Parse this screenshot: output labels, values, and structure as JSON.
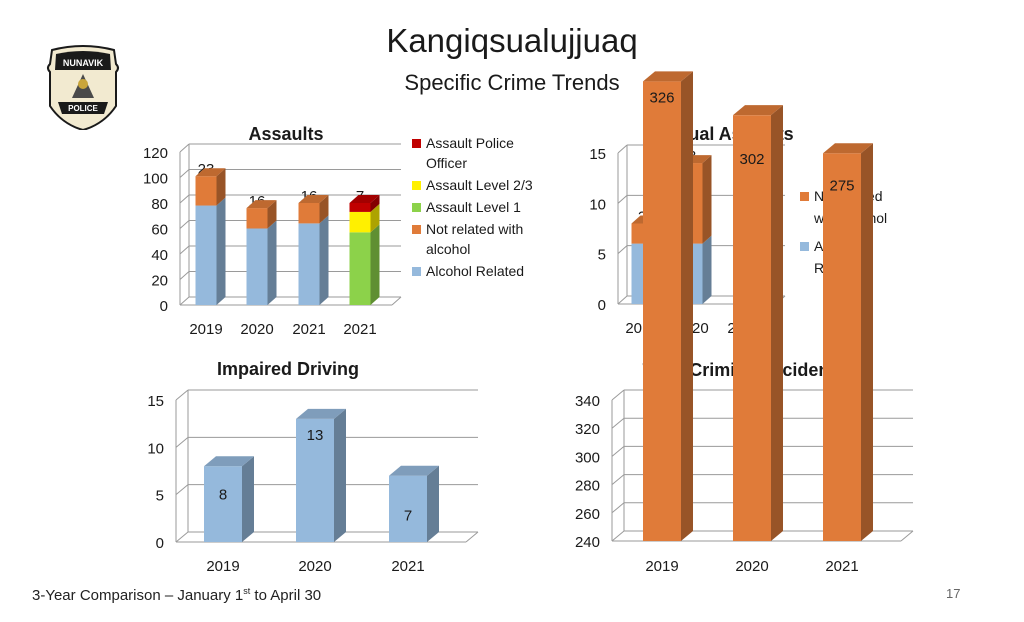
{
  "slide": {
    "title": "Kangiqsualujjuaq",
    "subtitle": "Specific Crime Trends",
    "logo_text_top": "NUNAVIK",
    "logo_text_bottom": "POLICE",
    "footer_pre": "3-Year Comparison – January 1",
    "footer_sup": "st",
    "footer_post": " to April 30",
    "page_number": "17"
  },
  "colors": {
    "alcohol_related": "#95B9DC",
    "not_related": "#E07B39",
    "assault_level_1": "#8CD24A",
    "assault_level_23": "#FFF000",
    "assault_police": "#C00000"
  },
  "chart_data": [
    {
      "id": "assaults",
      "type": "bar",
      "stacked": true,
      "title": "Assaults",
      "categories": [
        "2019",
        "2020",
        "2021",
        "2021"
      ],
      "ylim": [
        0,
        120
      ],
      "yticks": [
        0,
        20,
        40,
        60,
        80,
        100,
        120
      ],
      "grid": true,
      "legend_position": "right",
      "series": [
        {
          "name": "Alcohol Related",
          "color": "#95B9DC",
          "values": [
            78,
            60,
            64,
            0
          ]
        },
        {
          "name": "Assault Level 1",
          "color": "#8CD24A",
          "values": [
            0,
            0,
            0,
            57
          ]
        },
        {
          "name": "Not related with alcohol",
          "color": "#E07B39",
          "values": [
            23,
            16,
            16,
            0
          ]
        },
        {
          "name": "Assault Level 2/3",
          "color": "#FFF000",
          "values": [
            0,
            0,
            0,
            16
          ]
        },
        {
          "name": "Assault Police Officer",
          "color": "#C00000",
          "values": [
            0,
            0,
            0,
            7
          ]
        }
      ],
      "legend": [
        {
          "name": "Assault Police Officer",
          "color": "#C00000"
        },
        {
          "name": "Assault Level 2/3",
          "color": "#FFF000"
        },
        {
          "name": "Assault Level 1",
          "color": "#8CD24A"
        },
        {
          "name": "Not related with alcohol",
          "color": "#E07B39"
        },
        {
          "name": "Alcohol Related",
          "color": "#95B9DC"
        }
      ]
    },
    {
      "id": "sexual-assaults",
      "type": "bar",
      "stacked": true,
      "title": "Sexual Assaults",
      "categories": [
        "2019",
        "2020",
        "2021"
      ],
      "ylim": [
        0,
        15
      ],
      "yticks": [
        0,
        5,
        10,
        15
      ],
      "grid": true,
      "legend_position": "right",
      "series": [
        {
          "name": "Alcohol Related",
          "color": "#95B9DC",
          "values": [
            6,
            6,
            5
          ]
        },
        {
          "name": "Not related with alcohol",
          "color": "#E07B39",
          "values": [
            2,
            8,
            2
          ]
        }
      ],
      "legend": [
        {
          "name": "Not related with alcohol",
          "color": "#E07B39"
        },
        {
          "name": "Alcohol Related",
          "color": "#95B9DC"
        }
      ]
    },
    {
      "id": "impaired-driving",
      "type": "bar",
      "stacked": false,
      "title": "Impaired Driving",
      "categories": [
        "2019",
        "2020",
        "2021"
      ],
      "ylim": [
        0,
        15
      ],
      "yticks": [
        0,
        5,
        10,
        15
      ],
      "grid": true,
      "series": [
        {
          "name": "",
          "color": "#95B9DC",
          "values": [
            8,
            13,
            7
          ]
        }
      ],
      "legend": []
    },
    {
      "id": "total-criminal-incidents",
      "type": "bar",
      "stacked": false,
      "title": "Total Criminal Incidents",
      "categories": [
        "2019",
        "2020",
        "2021"
      ],
      "ylim": [
        240,
        340
      ],
      "yticks": [
        240,
        260,
        280,
        300,
        320,
        340
      ],
      "grid": true,
      "series": [
        {
          "name": "",
          "color": "#E07B39",
          "values": [
            326,
            302,
            275
          ]
        }
      ],
      "legend": []
    }
  ]
}
